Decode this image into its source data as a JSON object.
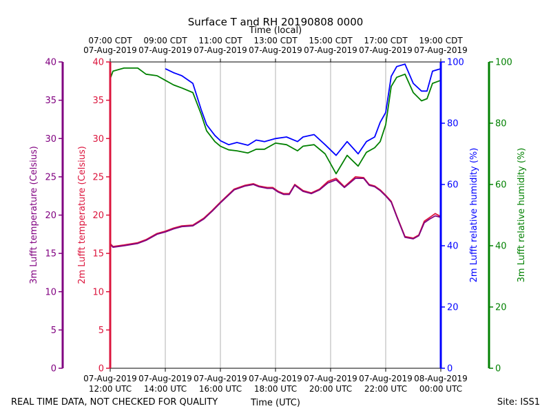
{
  "chart_data": {
    "type": "line",
    "title": "Surface T and RH 20190808 0000",
    "top_axis_label": "Time (local)",
    "bottom_axis_label": "Time (UTC)",
    "footer_left": "REAL TIME DATA, NOT CHECKED FOR QUALITY",
    "footer_right": "Site: ISS1",
    "x_range_hours": [
      12,
      24
    ],
    "x_ticks_utc": [
      {
        "h": 12,
        "date": "07-Aug-2019",
        "time": "12:00 UTC"
      },
      {
        "h": 14,
        "date": "07-Aug-2019",
        "time": "14:00 UTC"
      },
      {
        "h": 16,
        "date": "07-Aug-2019",
        "time": "16:00 UTC"
      },
      {
        "h": 18,
        "date": "07-Aug-2019",
        "time": "18:00 UTC"
      },
      {
        "h": 20,
        "date": "07-Aug-2019",
        "time": "20:00 UTC"
      },
      {
        "h": 22,
        "date": "07-Aug-2019",
        "time": "22:00 UTC"
      },
      {
        "h": 24,
        "date": "08-Aug-2019",
        "time": "00:00 UTC"
      }
    ],
    "x_ticks_local": [
      {
        "h": 12,
        "time": "07:00 CDT",
        "date": "07-Aug-2019"
      },
      {
        "h": 14,
        "time": "09:00 CDT",
        "date": "07-Aug-2019"
      },
      {
        "h": 16,
        "time": "11:00 CDT",
        "date": "07-Aug-2019"
      },
      {
        "h": 18,
        "time": "13:00 CDT",
        "date": "07-Aug-2019"
      },
      {
        "h": 20,
        "time": "15:00 CDT",
        "date": "07-Aug-2019"
      },
      {
        "h": 22,
        "time": "17:00 CDT",
        "date": "07-Aug-2019"
      },
      {
        "h": 24,
        "time": "19:00 CDT",
        "date": "07-Aug-2019"
      }
    ],
    "axes": {
      "t3m": {
        "label": "3m Lufft temperature (Celsius)",
        "range": [
          0,
          40
        ],
        "ticks": [
          "0",
          "5",
          "10",
          "15",
          "20",
          "25",
          "30",
          "35",
          "40"
        ],
        "color": "#800080"
      },
      "t2m": {
        "label": "2m Lufft temperature (Celsius)",
        "range": [
          0,
          40
        ],
        "ticks": [
          "0",
          "5",
          "10",
          "15",
          "20",
          "25",
          "30",
          "35",
          "40"
        ],
        "color": "#dc143c"
      },
      "rh2m": {
        "label": "2m Lufft relative humidity (%)",
        "range": [
          0,
          100
        ],
        "ticks": [
          "0",
          "20",
          "40",
          "60",
          "80",
          "100"
        ],
        "color": "#0000ff"
      },
      "rh3m": {
        "label": "3m Lufft relative humidity (%)",
        "range": [
          0,
          100
        ],
        "ticks": [
          "0",
          "20",
          "40",
          "60",
          "80",
          "100"
        ],
        "color": "#008000"
      }
    },
    "series": [
      {
        "name": "2m Lufft temperature",
        "axis": "t2m",
        "color": "#dc143c",
        "x": [
          12.0,
          12.1,
          12.5,
          13.0,
          13.3,
          13.7,
          14.0,
          14.3,
          14.6,
          15.0,
          15.4,
          15.7,
          16.0,
          16.5,
          16.9,
          17.2,
          17.4,
          17.7,
          17.9,
          18.1,
          18.3,
          18.5,
          18.7,
          19.0,
          19.3,
          19.6,
          19.9,
          20.2,
          20.5,
          20.9,
          21.2,
          21.4,
          21.6,
          21.8,
          22.0,
          22.2,
          22.4,
          22.7,
          23.0,
          23.2,
          23.4,
          23.6,
          23.8,
          24.0
        ],
        "y": [
          16.3,
          15.9,
          16.1,
          16.4,
          16.8,
          17.6,
          17.9,
          18.3,
          18.6,
          18.7,
          19.6,
          20.6,
          21.7,
          23.4,
          23.9,
          24.1,
          23.8,
          23.6,
          23.6,
          23.1,
          22.8,
          22.8,
          24.0,
          23.2,
          22.9,
          23.4,
          24.4,
          24.8,
          23.7,
          25.0,
          24.9,
          24.0,
          23.8,
          23.3,
          22.6,
          21.8,
          19.9,
          17.2,
          17.0,
          17.4,
          19.2,
          19.7,
          20.2,
          19.8
        ]
      },
      {
        "name": "3m Lufft temperature",
        "axis": "t3m",
        "color": "#800080",
        "x": [
          12.0,
          12.1,
          12.5,
          13.0,
          13.3,
          13.7,
          14.0,
          14.3,
          14.6,
          15.0,
          15.4,
          15.7,
          16.0,
          16.5,
          16.9,
          17.2,
          17.4,
          17.7,
          17.9,
          18.1,
          18.3,
          18.5,
          18.7,
          19.0,
          19.3,
          19.6,
          19.9,
          20.2,
          20.5,
          20.9,
          21.2,
          21.4,
          21.6,
          21.8,
          22.0,
          22.2,
          22.4,
          22.7,
          23.0,
          23.2,
          23.4,
          23.6,
          23.8,
          24.0
        ],
        "y": [
          16.2,
          15.8,
          16.0,
          16.3,
          16.7,
          17.5,
          17.8,
          18.2,
          18.5,
          18.6,
          19.5,
          20.5,
          21.6,
          23.3,
          23.8,
          24.0,
          23.7,
          23.5,
          23.5,
          23.0,
          22.7,
          22.7,
          23.9,
          23.1,
          22.8,
          23.3,
          24.2,
          24.6,
          23.6,
          24.8,
          24.8,
          23.9,
          23.7,
          23.2,
          22.5,
          21.7,
          19.8,
          17.1,
          16.9,
          17.3,
          19.0,
          19.5,
          19.9,
          19.7
        ]
      },
      {
        "name": "2m Lufft relative humidity",
        "axis": "rh2m",
        "color": "#0000ff",
        "x": [
          14.0,
          14.3,
          14.6,
          15.0,
          15.3,
          15.5,
          15.8,
          16.0,
          16.3,
          16.6,
          17.0,
          17.3,
          17.6,
          18.0,
          18.4,
          18.8,
          19.0,
          19.4,
          19.8,
          20.2,
          20.6,
          21.0,
          21.3,
          21.6,
          21.8,
          22.0,
          22.2,
          22.4,
          22.7,
          23.0,
          23.3,
          23.5,
          23.7,
          24.0
        ],
        "y": [
          97.8,
          96.5,
          95.5,
          93.0,
          84.5,
          79.5,
          76.0,
          74.3,
          73.0,
          73.7,
          72.8,
          74.5,
          74.0,
          75.0,
          75.5,
          74.0,
          75.5,
          76.3,
          73.0,
          69.5,
          74.0,
          70.0,
          74.0,
          75.5,
          80.3,
          83.5,
          95.3,
          98.5,
          99.3,
          93.0,
          90.5,
          90.5,
          97.0,
          97.8
        ]
      },
      {
        "name": "3m Lufft relative humidity",
        "axis": "rh3m",
        "color": "#008000",
        "x": [
          12.0,
          12.1,
          12.5,
          13.0,
          13.3,
          13.7,
          14.0,
          14.3,
          14.6,
          15.0,
          15.3,
          15.5,
          15.8,
          16.0,
          16.3,
          16.6,
          17.0,
          17.3,
          17.6,
          18.0,
          18.4,
          18.8,
          19.0,
          19.4,
          19.8,
          20.2,
          20.6,
          21.0,
          21.3,
          21.6,
          21.8,
          22.0,
          22.2,
          22.4,
          22.7,
          23.0,
          23.3,
          23.5,
          23.7,
          24.0
        ],
        "y": [
          94.5,
          97.0,
          98.0,
          98.0,
          96.0,
          95.5,
          94.0,
          92.5,
          91.5,
          90.0,
          83.0,
          77.5,
          74.0,
          72.5,
          71.3,
          71.0,
          70.3,
          71.5,
          71.5,
          73.5,
          73.0,
          71.0,
          72.5,
          73.0,
          70.0,
          63.5,
          69.5,
          66.0,
          70.5,
          72.0,
          74.0,
          79.5,
          92.0,
          95.0,
          96.0,
          90.0,
          87.3,
          88.0,
          93.0,
          94.0
        ]
      }
    ]
  }
}
